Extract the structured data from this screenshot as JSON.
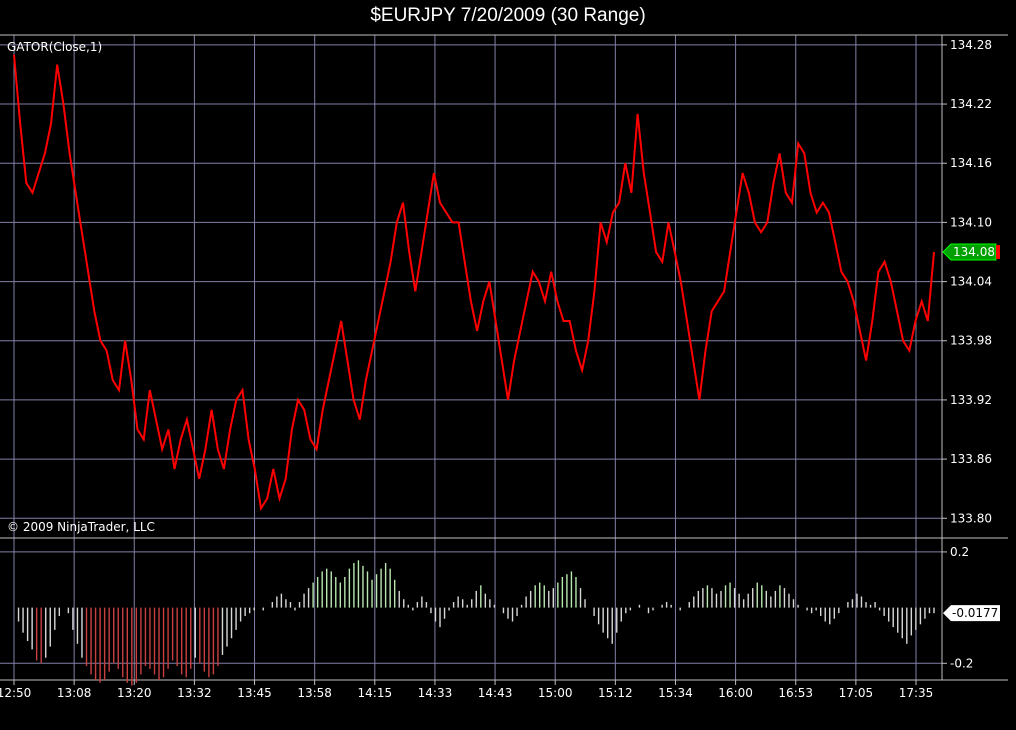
{
  "title": "$EURJPY  7/20/2009 (30 Range)",
  "indicator_label": "GATOR(Close,1)",
  "copyright": "© 2009 NinjaTrader, LLC",
  "colors": {
    "background": "#000000",
    "grid": "#8080a8",
    "price_line": "#ff0000",
    "hist_up": "#b8e8b0",
    "hist_down_price": "#c84040",
    "hist_neutral": "#d8d8d8",
    "current_price_flag": "#00a000"
  },
  "chart_data": [
    {
      "type": "line",
      "name": "price",
      "title": "$EURJPY  7/20/2009 (30 Range)",
      "ylim": [
        133.78,
        134.29
      ],
      "yticks": [
        134.28,
        134.22,
        134.16,
        134.1,
        134.04,
        133.98,
        133.92,
        133.86,
        133.8
      ],
      "ytick_labels": [
        "134.28",
        "134.22",
        "134.16",
        "134.10",
        "134.04",
        "133.98",
        "133.92",
        "133.86",
        "133.80"
      ],
      "current_value_label": "134.08",
      "xtick_labels": [
        "12:50",
        "13:08",
        "13:20",
        "13:32",
        "13:45",
        "13:58",
        "14:15",
        "14:33",
        "14:43",
        "15:00",
        "15:12",
        "15:34",
        "16:00",
        "16:53",
        "17:05",
        "17:35"
      ],
      "grid": true,
      "values": [
        134.27,
        134.2,
        134.14,
        134.13,
        134.15,
        134.17,
        134.2,
        134.26,
        134.22,
        134.17,
        134.13,
        134.09,
        134.05,
        134.01,
        133.98,
        133.97,
        133.94,
        133.93,
        133.98,
        133.94,
        133.89,
        133.88,
        133.93,
        133.9,
        133.87,
        133.89,
        133.85,
        133.88,
        133.9,
        133.87,
        133.84,
        133.87,
        133.91,
        133.87,
        133.85,
        133.89,
        133.92,
        133.93,
        133.88,
        133.85,
        133.81,
        133.82,
        133.85,
        133.82,
        133.84,
        133.89,
        133.92,
        133.91,
        133.88,
        133.87,
        133.91,
        133.94,
        133.97,
        134.0,
        133.96,
        133.92,
        133.9,
        133.94,
        133.97,
        134.0,
        134.03,
        134.06,
        134.1,
        134.12,
        134.07,
        134.03,
        134.07,
        134.11,
        134.15,
        134.12,
        134.11,
        134.1,
        134.1,
        134.06,
        134.02,
        133.99,
        134.02,
        134.04,
        134.0,
        133.96,
        133.92,
        133.96,
        133.99,
        134.02,
        134.05,
        134.04,
        134.02,
        134.05,
        134.02,
        134.0,
        134.0,
        133.97,
        133.95,
        133.98,
        134.03,
        134.1,
        134.08,
        134.11,
        134.12,
        134.16,
        134.13,
        134.21,
        134.15,
        134.11,
        134.07,
        134.06,
        134.1,
        134.07,
        134.04,
        134.0,
        133.96,
        133.92,
        133.97,
        134.01,
        134.02,
        134.03,
        134.07,
        134.11,
        134.15,
        134.13,
        134.1,
        134.09,
        134.1,
        134.14,
        134.17,
        134.13,
        134.12,
        134.18,
        134.17,
        134.13,
        134.11,
        134.12,
        134.11,
        134.08,
        134.05,
        134.04,
        134.02,
        133.99,
        133.96,
        134.0,
        134.05,
        134.06,
        134.04,
        134.01,
        133.98,
        133.97,
        134.0,
        134.02,
        134.0,
        134.07
      ],
      "x_range_note": "values plotted left to right across the time axis"
    },
    {
      "type": "bar",
      "name": "GATOR(Close,1)",
      "ylim": [
        -0.26,
        0.25
      ],
      "yticks": [
        0.2,
        -0.2
      ],
      "ytick_labels": [
        "0.2",
        "-0.2"
      ],
      "current_value_label": "-0.0177",
      "values": [
        0.0,
        -0.05,
        -0.09,
        -0.12,
        -0.15,
        -0.19,
        -0.2,
        -0.18,
        -0.14,
        -0.08,
        -0.03,
        0.0,
        -0.02,
        -0.08,
        -0.13,
        -0.18,
        -0.21,
        -0.24,
        -0.26,
        -0.27,
        -0.26,
        -0.23,
        -0.2,
        -0.22,
        -0.25,
        -0.27,
        -0.28,
        -0.27,
        -0.24,
        -0.21,
        -0.22,
        -0.24,
        -0.26,
        -0.25,
        -0.22,
        -0.19,
        -0.21,
        -0.24,
        -0.25,
        -0.22,
        -0.18,
        -0.2,
        -0.23,
        -0.25,
        -0.24,
        -0.21,
        -0.17,
        -0.14,
        -0.11,
        -0.08,
        -0.05,
        -0.03,
        -0.02,
        -0.01,
        0.0,
        -0.01,
        0.0,
        0.02,
        0.04,
        0.05,
        0.03,
        0.02,
        -0.01,
        0.02,
        0.05,
        0.07,
        0.09,
        0.11,
        0.13,
        0.14,
        0.13,
        0.11,
        0.09,
        0.11,
        0.14,
        0.16,
        0.17,
        0.15,
        0.13,
        0.1,
        0.12,
        0.14,
        0.16,
        0.14,
        0.1,
        0.06,
        0.03,
        0.01,
        -0.01,
        0.02,
        0.04,
        0.02,
        -0.02,
        -0.05,
        -0.07,
        -0.04,
        -0.01,
        0.02,
        0.04,
        0.03,
        0.01,
        0.03,
        0.06,
        0.08,
        0.05,
        0.03,
        0.01,
        0.0,
        -0.02,
        -0.04,
        -0.05,
        -0.03,
        0.01,
        0.04,
        0.06,
        0.08,
        0.09,
        0.08,
        0.06,
        0.07,
        0.09,
        0.11,
        0.12,
        0.13,
        0.11,
        0.07,
        0.03,
        0.0,
        -0.03,
        -0.06,
        -0.09,
        -0.11,
        -0.13,
        -0.09,
        -0.05,
        -0.02,
        -0.01,
        0.0,
        0.01,
        0.0,
        -0.02,
        -0.01,
        0.0,
        0.01,
        0.02,
        0.01,
        0.0,
        -0.01,
        0.0,
        0.02,
        0.04,
        0.06,
        0.07,
        0.08,
        0.07,
        0.05,
        0.06,
        0.08,
        0.09,
        0.07,
        0.05,
        0.03,
        0.05,
        0.07,
        0.09,
        0.08,
        0.06,
        0.04,
        0.06,
        0.08,
        0.07,
        0.05,
        0.03,
        0.01,
        0.0,
        -0.01,
        -0.02,
        -0.01,
        -0.03,
        -0.05,
        -0.06,
        -0.04,
        -0.02,
        0.0,
        0.02,
        0.03,
        0.05,
        0.04,
        0.02,
        0.01,
        0.02,
        -0.01,
        -0.03,
        -0.05,
        -0.07,
        -0.09,
        -0.11,
        -0.13,
        -0.1,
        -0.08,
        -0.06,
        -0.04,
        -0.02,
        -0.02
      ]
    }
  ]
}
